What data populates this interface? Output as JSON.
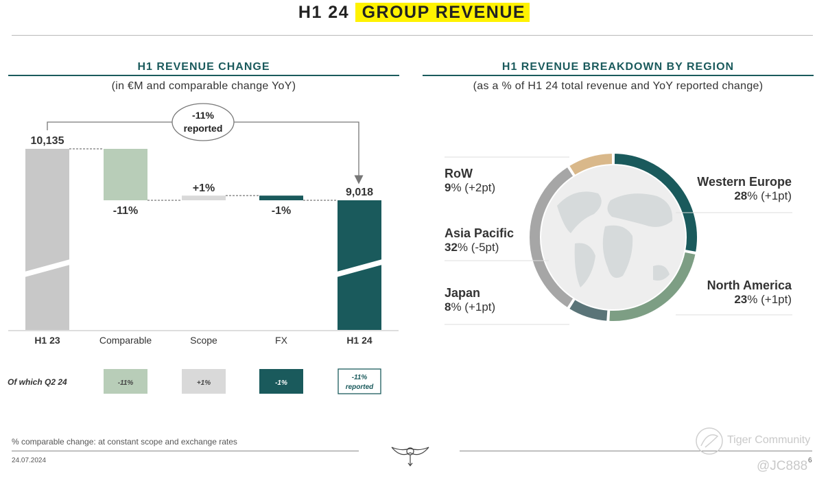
{
  "header": {
    "title_prefix": "H1 24",
    "title_highlight": "GROUP REVENUE"
  },
  "left_section": {
    "title": "H1 REVENUE CHANGE",
    "subtitle": "(in €M and comparable change YoY)"
  },
  "right_section": {
    "title": "H1 REVENUE BREAKDOWN BY REGION",
    "subtitle": "(as a % of H1 24 total revenue and YoY reported change)"
  },
  "chart_data": [
    {
      "type": "bar",
      "subtype": "waterfall",
      "categories": [
        "H1 23",
        "Comparable",
        "Scope",
        "FX",
        "H1 24"
      ],
      "values": [
        10135,
        -11,
        1,
        -1,
        9018
      ],
      "value_labels": [
        "10,135",
        "-11%",
        "+1%",
        "-1%",
        "9,018"
      ],
      "bars_kind": [
        "total",
        "change",
        "change",
        "change",
        "total"
      ],
      "reported_callout": [
        "-11%",
        "reported"
      ],
      "axis_break": true,
      "colors": [
        "#c8c8c8",
        "#b8cdb8",
        "#d9d9d9",
        "#1a5a5c",
        "#1a5a5c"
      ],
      "q2_row": {
        "label": "Of which Q2 24",
        "values": [
          "-11%",
          "+1%",
          "-1%"
        ],
        "reported": [
          "-11%",
          "reported"
        ]
      }
    },
    {
      "type": "pie",
      "subtype": "donut",
      "categories": [
        "Western Europe",
        "North America",
        "RoW",
        "Japan",
        "Asia Pacific"
      ],
      "values": [
        28,
        23,
        9,
        8,
        32
      ],
      "yoy_change": [
        "+1pt",
        "+1pt",
        "+2pt",
        "+1pt",
        "-5pt"
      ],
      "slice_order": [
        "Western Europe",
        "North America",
        "Japan",
        "Asia Pacific",
        "RoW"
      ],
      "colors": {
        "Western Europe": "#1a5a5c",
        "North America": "#7d9e84",
        "Japan": "#5a7478",
        "Asia Pacific": "#a6a6a6",
        "RoW": "#d9b88a"
      }
    }
  ],
  "footer": {
    "footnote": "% comparable change: at constant scope and exchange rates",
    "date": "24.07.2024",
    "page_number": "6",
    "watermark_brand": "Tiger Community",
    "watermark_user": "@JC888"
  }
}
